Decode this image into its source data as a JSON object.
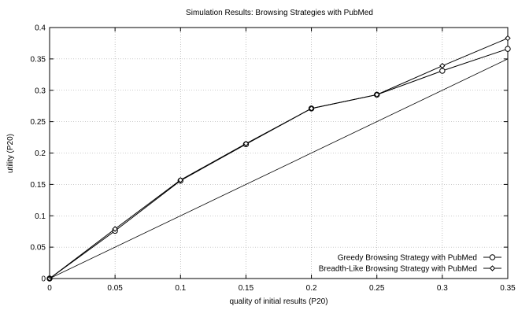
{
  "chart_data": {
    "type": "line",
    "title": "Simulation Results: Browsing Strategies with PubMed",
    "xlabel": "quality of initial results (P20)",
    "ylabel": "utility (P20)",
    "xlim": [
      0,
      0.35
    ],
    "ylim": [
      0,
      0.4
    ],
    "x_ticks": [
      "0",
      "0.05",
      "0.1",
      "0.15",
      "0.2",
      "0.25",
      "0.3",
      "0.35"
    ],
    "x_tick_values": [
      0,
      0.05,
      0.1,
      0.15,
      0.2,
      0.25,
      0.3,
      0.35
    ],
    "y_ticks": [
      "0",
      "0.05",
      "0.1",
      "0.15",
      "0.2",
      "0.25",
      "0.3",
      "0.35",
      "0.4"
    ],
    "y_tick_values": [
      0,
      0.05,
      0.1,
      0.15,
      0.2,
      0.25,
      0.3,
      0.35,
      0.4
    ],
    "grid": true,
    "legend_position": "bottom-right",
    "series": [
      {
        "name": "Greedy Browsing Strategy with PubMed",
        "marker": "circle",
        "x": [
          0,
          0.05,
          0.1,
          0.15,
          0.2,
          0.25,
          0.3,
          0.35
        ],
        "values": [
          0,
          0.076,
          0.156,
          0.214,
          0.271,
          0.293,
          0.331,
          0.366
        ]
      },
      {
        "name": "Breadth-Like Browsing Strategy with PubMed",
        "marker": "diamond",
        "x": [
          0,
          0.05,
          0.1,
          0.15,
          0.2,
          0.25,
          0.3,
          0.35
        ],
        "values": [
          0,
          0.079,
          0.157,
          0.215,
          0.271,
          0.293,
          0.339,
          0.383
        ]
      }
    ],
    "reference_line": {
      "x": [
        0,
        0.35
      ],
      "values": [
        0,
        0.35
      ]
    },
    "colors": {
      "line": "#000000",
      "grid": "#999999",
      "background": "#ffffff"
    }
  }
}
